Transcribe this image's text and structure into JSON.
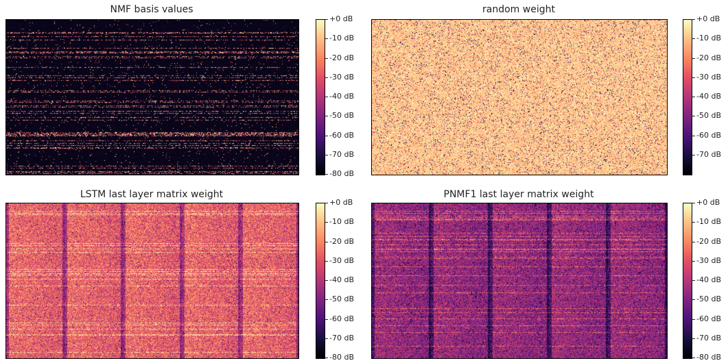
{
  "chart_data": [
    {
      "type": "heatmap",
      "title": "NMF basis values",
      "pattern": "sparse",
      "colorbar": {
        "colormap": "magma",
        "ticks": [
          "+0 dB",
          "-10 dB",
          "-20 dB",
          "-30 dB",
          "-40 dB",
          "-50 dB",
          "-60 dB",
          "-70 dB",
          "-80 dB"
        ]
      }
    },
    {
      "type": "heatmap",
      "title": "random weight",
      "pattern": "uniform-noise",
      "colorbar": {
        "colormap": "magma",
        "ticks": [
          "+0 dB",
          "-10 dB",
          "-20 dB",
          "-30 dB",
          "-40 dB",
          "-50 dB",
          "-60 dB",
          "-70 dB"
        ]
      }
    },
    {
      "type": "heatmap",
      "title": "LSTM last layer matrix weight",
      "pattern": "banded-bright",
      "colorbar": {
        "colormap": "magma",
        "ticks": [
          "+0 dB",
          "-10 dB",
          "-20 dB",
          "-30 dB",
          "-40 dB",
          "-50 dB",
          "-60 dB",
          "-70 dB",
          "-80 dB"
        ]
      }
    },
    {
      "type": "heatmap",
      "title": "PNMF1 last layer matrix weight",
      "pattern": "banded-dark",
      "colorbar": {
        "colormap": "magma",
        "ticks": [
          "+0 dB",
          "-10 dB",
          "-20 dB",
          "-30 dB",
          "-40 dB",
          "-50 dB",
          "-60 dB",
          "-70 dB",
          "-80 dB"
        ]
      }
    }
  ]
}
